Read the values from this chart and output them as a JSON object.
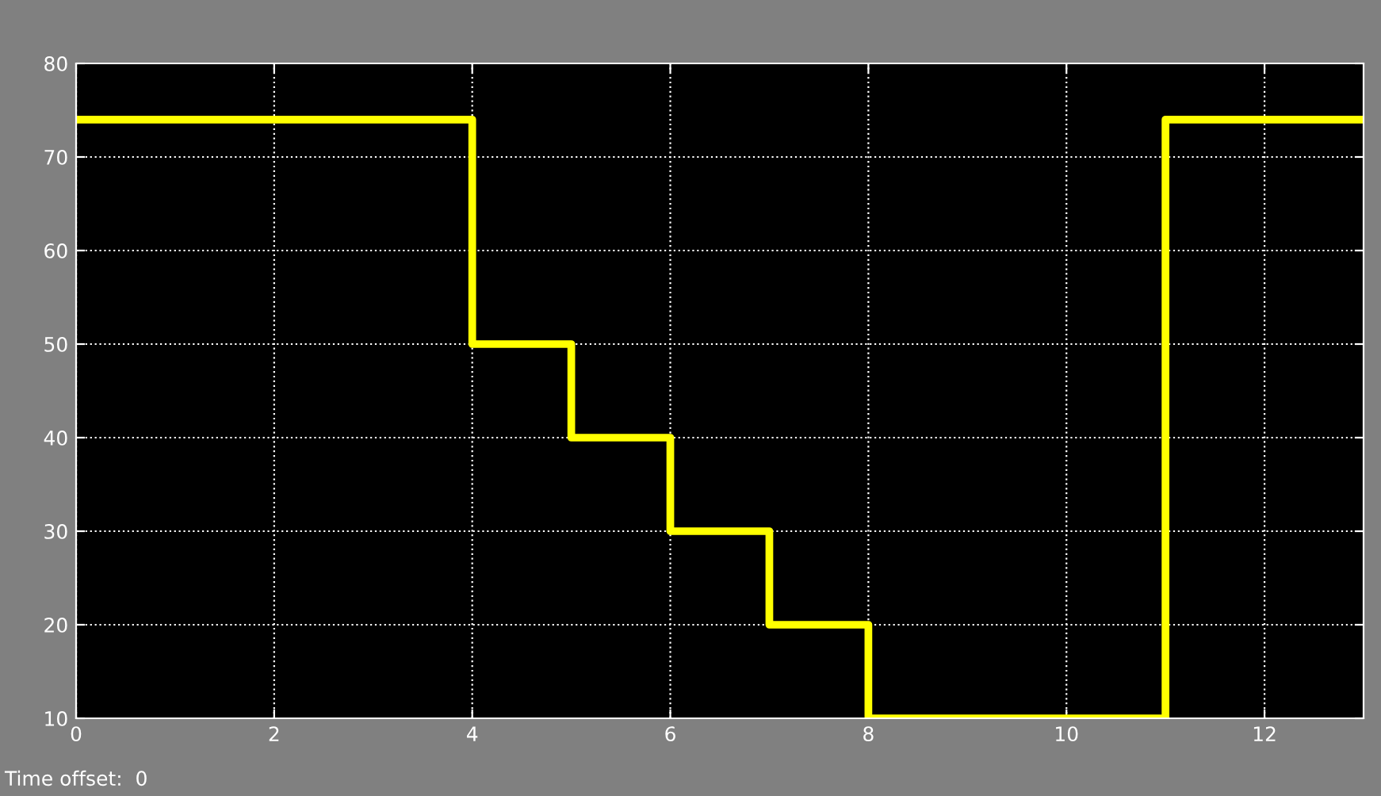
{
  "chart_data": {
    "type": "step",
    "x": [
      0,
      4,
      5,
      6,
      7,
      8,
      11,
      13
    ],
    "series": [
      {
        "color": "#ffff00",
        "values": [
          74,
          50,
          40,
          30,
          20,
          10,
          74,
          74
        ]
      }
    ],
    "xlim": [
      0,
      13
    ],
    "xticks": [
      0,
      2,
      4,
      6,
      8,
      10,
      12
    ],
    "ylim": [
      10,
      80
    ],
    "yticks": [
      10,
      20,
      30,
      40,
      50,
      60,
      70,
      80
    ],
    "grid": true,
    "line_style": "solid",
    "marker": "none",
    "annotations": [
      "Time offset:  0"
    ]
  }
}
